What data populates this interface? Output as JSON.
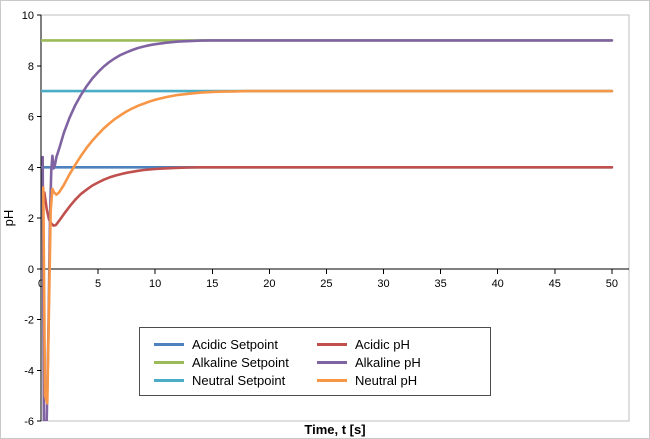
{
  "chart_data": {
    "type": "line",
    "title": "",
    "xlabel": "Time, t [s]",
    "ylabel": "pH",
    "xlim": [
      0,
      51.5
    ],
    "ylim": [
      -6,
      10
    ],
    "x_ticks": [
      0,
      5,
      10,
      15,
      20,
      25,
      30,
      35,
      40,
      45,
      50
    ],
    "y_ticks": [
      -6,
      -4,
      -2,
      0,
      2,
      4,
      6,
      8,
      10
    ],
    "grid": false,
    "legend_position": "inside-bottom-center",
    "legend_rows": [
      [
        "Acidic Setpoint",
        "Acidic pH"
      ],
      [
        "Alkaline Setpoint",
        "Alkaline pH"
      ],
      [
        "Neutral Setpoint",
        "Neutral pH"
      ]
    ],
    "series": [
      {
        "name": "Acidic Setpoint",
        "color": "#4F81BD",
        "points": [
          [
            0,
            4
          ],
          [
            50,
            4
          ]
        ]
      },
      {
        "name": "Alkaline Setpoint",
        "color": "#9BBB59",
        "points": [
          [
            0,
            9
          ],
          [
            50,
            9
          ]
        ]
      },
      {
        "name": "Neutral Setpoint",
        "color": "#4BACC6",
        "points": [
          [
            0,
            7
          ],
          [
            50,
            7
          ]
        ]
      },
      {
        "name": "Acidic pH",
        "color": "#C0504D",
        "points": [
          [
            0.3,
            3.0
          ],
          [
            0.5,
            2.35
          ],
          [
            0.7,
            1.95
          ],
          [
            0.9,
            1.78
          ],
          [
            1.1,
            1.7
          ],
          [
            1.3,
            1.72
          ],
          [
            1.6,
            1.9
          ],
          [
            2,
            2.15
          ],
          [
            2.5,
            2.45
          ],
          [
            3,
            2.72
          ],
          [
            3.5,
            2.95
          ],
          [
            4,
            3.12
          ],
          [
            4.5,
            3.28
          ],
          [
            5,
            3.4
          ],
          [
            5.5,
            3.51
          ],
          [
            6,
            3.6
          ],
          [
            6.5,
            3.67
          ],
          [
            7,
            3.73
          ],
          [
            7.5,
            3.78
          ],
          [
            8,
            3.82
          ],
          [
            8.5,
            3.86
          ],
          [
            9,
            3.89
          ],
          [
            9.5,
            3.91
          ],
          [
            10,
            3.93
          ],
          [
            11,
            3.96
          ],
          [
            12,
            3.98
          ],
          [
            13,
            3.99
          ],
          [
            14,
            4
          ],
          [
            50,
            4
          ]
        ]
      },
      {
        "name": "Alkaline pH",
        "color": "#8064A2",
        "points": [
          [
            0.15,
            4.4
          ],
          [
            0.25,
            -6
          ],
          [
            0.5,
            -6
          ],
          [
            0.65,
            -2.5
          ],
          [
            0.8,
            2.2
          ],
          [
            0.9,
            3.9
          ],
          [
            1.0,
            4.45
          ],
          [
            1.1,
            3.95
          ],
          [
            1.2,
            4.05
          ],
          [
            1.35,
            4.4
          ],
          [
            1.6,
            4.75
          ],
          [
            2,
            5.35
          ],
          [
            2.5,
            5.95
          ],
          [
            3,
            6.45
          ],
          [
            3.5,
            6.85
          ],
          [
            4,
            7.2
          ],
          [
            4.5,
            7.5
          ],
          [
            5,
            7.75
          ],
          [
            5.5,
            7.97
          ],
          [
            6,
            8.15
          ],
          [
            6.5,
            8.3
          ],
          [
            7,
            8.43
          ],
          [
            7.5,
            8.53
          ],
          [
            8,
            8.62
          ],
          [
            8.5,
            8.7
          ],
          [
            9,
            8.76
          ],
          [
            9.5,
            8.81
          ],
          [
            10,
            8.85
          ],
          [
            11,
            8.91
          ],
          [
            12,
            8.95
          ],
          [
            13,
            8.97
          ],
          [
            14,
            8.99
          ],
          [
            15,
            9
          ],
          [
            50,
            9
          ]
        ]
      },
      {
        "name": "Neutral pH",
        "color": "#F79646",
        "points": [
          [
            0.2,
            3.2
          ],
          [
            0.35,
            -5.0
          ],
          [
            0.55,
            -5.3
          ],
          [
            0.7,
            -1.5
          ],
          [
            0.85,
            2.3
          ],
          [
            1.0,
            3.15
          ],
          [
            1.15,
            3.0
          ],
          [
            1.35,
            2.92
          ],
          [
            1.6,
            3.02
          ],
          [
            2,
            3.3
          ],
          [
            2.5,
            3.72
          ],
          [
            3,
            4.1
          ],
          [
            3.5,
            4.45
          ],
          [
            4,
            4.77
          ],
          [
            4.5,
            5.05
          ],
          [
            5,
            5.3
          ],
          [
            5.5,
            5.53
          ],
          [
            6,
            5.73
          ],
          [
            6.5,
            5.91
          ],
          [
            7,
            6.06
          ],
          [
            7.5,
            6.2
          ],
          [
            8,
            6.32
          ],
          [
            8.5,
            6.42
          ],
          [
            9,
            6.51
          ],
          [
            9.5,
            6.59
          ],
          [
            10,
            6.66
          ],
          [
            11,
            6.77
          ],
          [
            12,
            6.85
          ],
          [
            13,
            6.9
          ],
          [
            14,
            6.94
          ],
          [
            15,
            6.97
          ],
          [
            16,
            6.98
          ],
          [
            17,
            6.99
          ],
          [
            18,
            7
          ],
          [
            50,
            7
          ]
        ]
      }
    ]
  }
}
